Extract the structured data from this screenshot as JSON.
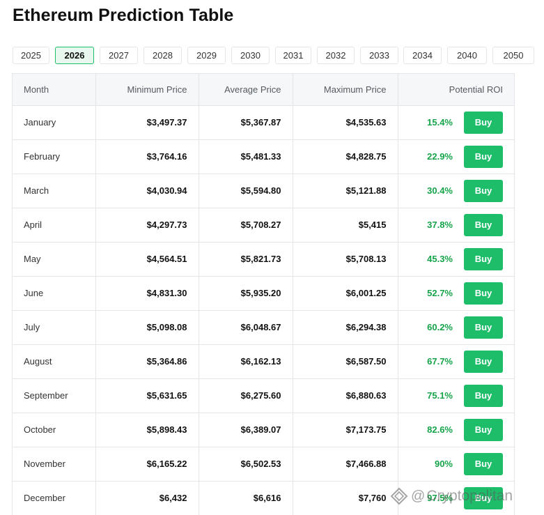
{
  "title": "Ethereum Prediction Table",
  "year_tabs": {
    "active": "2026",
    "items": [
      "2025",
      "2026",
      "2027",
      "2028",
      "2029",
      "2030",
      "2031",
      "2032",
      "2033",
      "2034",
      "2040",
      "2050"
    ]
  },
  "table": {
    "headers": {
      "month": "Month",
      "min": "Minimum Price",
      "avg": "Average Price",
      "max": "Maximum Price",
      "roi": "Potential ROI"
    },
    "buy_label": "Buy",
    "rows": [
      {
        "month": "January",
        "min": "$3,497.37",
        "avg": "$5,367.87",
        "max": "$4,535.63",
        "roi": "15.4%"
      },
      {
        "month": "February",
        "min": "$3,764.16",
        "avg": "$5,481.33",
        "max": "$4,828.75",
        "roi": "22.9%"
      },
      {
        "month": "March",
        "min": "$4,030.94",
        "avg": "$5,594.80",
        "max": "$5,121.88",
        "roi": "30.4%"
      },
      {
        "month": "April",
        "min": "$4,297.73",
        "avg": "$5,708.27",
        "max": "$5,415",
        "roi": "37.8%"
      },
      {
        "month": "May",
        "min": "$4,564.51",
        "avg": "$5,821.73",
        "max": "$5,708.13",
        "roi": "45.3%"
      },
      {
        "month": "June",
        "min": "$4,831.30",
        "avg": "$5,935.20",
        "max": "$6,001.25",
        "roi": "52.7%"
      },
      {
        "month": "July",
        "min": "$5,098.08",
        "avg": "$6,048.67",
        "max": "$6,294.38",
        "roi": "60.2%"
      },
      {
        "month": "August",
        "min": "$5,364.86",
        "avg": "$6,162.13",
        "max": "$6,587.50",
        "roi": "67.7%"
      },
      {
        "month": "September",
        "min": "$5,631.65",
        "avg": "$6,275.60",
        "max": "$6,880.63",
        "roi": "75.1%"
      },
      {
        "month": "October",
        "min": "$5,898.43",
        "avg": "$6,389.07",
        "max": "$7,173.75",
        "roi": "82.6%"
      },
      {
        "month": "November",
        "min": "$6,165.22",
        "avg": "$6,502.53",
        "max": "$7,466.88",
        "roi": "90%"
      },
      {
        "month": "December",
        "min": "$6,432",
        "avg": "$6,616",
        "max": "$7,760",
        "roi": "97.5%"
      }
    ]
  },
  "watermark": {
    "text": "Cryptopolitan",
    "at_symbol": "@",
    "icon": "cryptopolitan-logo-icon"
  },
  "colors": {
    "accent_green": "#1ebd6a",
    "roi_green": "#16a34a",
    "header_bg": "#f6f7f9",
    "border": "#e3e5e8",
    "active_tab_bg": "#e9f8ef"
  }
}
